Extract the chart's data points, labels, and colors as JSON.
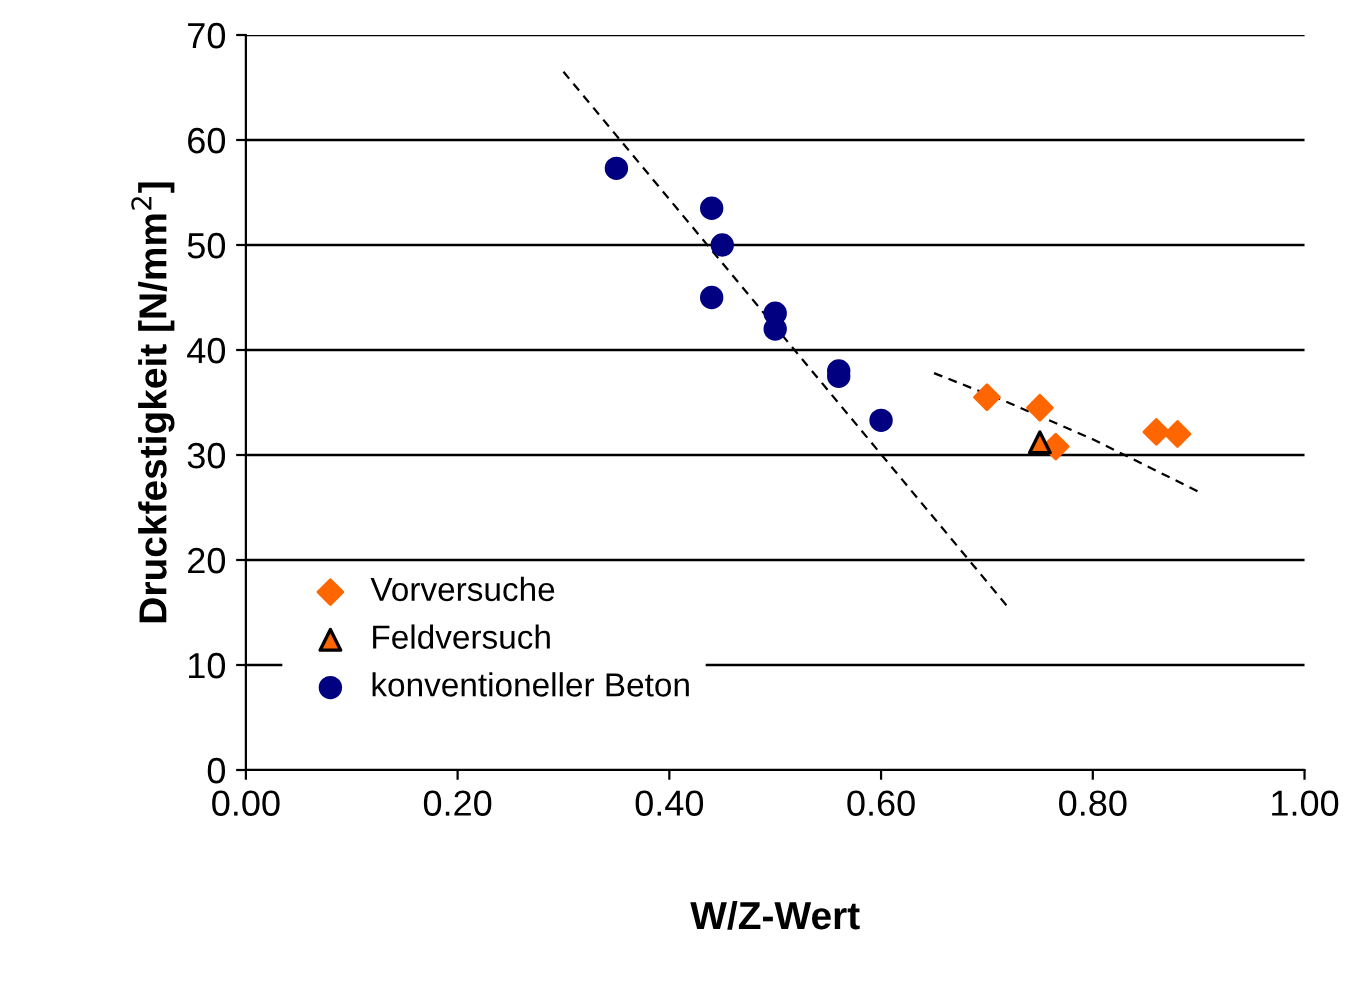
{
  "chart_data": {
    "type": "scatter",
    "xlabel": "W/Z-Wert",
    "ylabel": "Druckfestigkeit [N/mm$^{2}$]",
    "xlim": [
      0,
      1
    ],
    "xticks": [
      {
        "value": 0,
        "label": "0.00"
      },
      {
        "value": 0.2,
        "label": "0.20"
      },
      {
        "value": 0.4,
        "label": "0.40"
      },
      {
        "value": 0.6,
        "label": "0.60"
      },
      {
        "value": 0.8,
        "label": "0.80"
      },
      {
        "value": 1,
        "label": "1.00"
      }
    ],
    "ylim": [
      0,
      70
    ],
    "yticks": [
      0,
      10,
      20,
      30,
      40,
      50,
      60,
      70
    ],
    "grid": "y",
    "legend": "bottom left",
    "series": [
      {
        "type": "line",
        "color": "#000000",
        "line_style": "dashed",
        "marker": "none",
        "x": [
          0.3,
          0.72
        ],
        "values": [
          66.5,
          15.5
        ]
      },
      {
        "type": "line",
        "color": "#000000",
        "line_style": "dashed",
        "marker": "none",
        "x": [
          0.65,
          0.72,
          0.8,
          0.85,
          0.9
        ],
        "values": [
          37.8,
          35,
          31.5,
          29,
          26.5
        ]
      },
      {
        "name": "Vorversuche",
        "color": "#ff6600",
        "marker": "diamond",
        "x": [
          0.7,
          0.75,
          0.765,
          0.86,
          0.88
        ],
        "values": [
          35.5,
          34.5,
          30.8,
          32.2,
          32
        ]
      },
      {
        "name": "Feldversuch",
        "color": "#ff6600",
        "marker": "triangle",
        "x": [
          0.75
        ],
        "values": [
          31.2
        ]
      },
      {
        "name": "konventioneller Beton",
        "color": "#000080",
        "marker": "circle",
        "x": [
          0.35,
          0.44,
          0.45,
          0.44,
          0.5,
          0.5,
          0.56,
          0.56,
          0.6
        ],
        "values": [
          57.3,
          53.5,
          50,
          45,
          43.5,
          42,
          38,
          37.5,
          33.3
        ]
      }
    ]
  }
}
